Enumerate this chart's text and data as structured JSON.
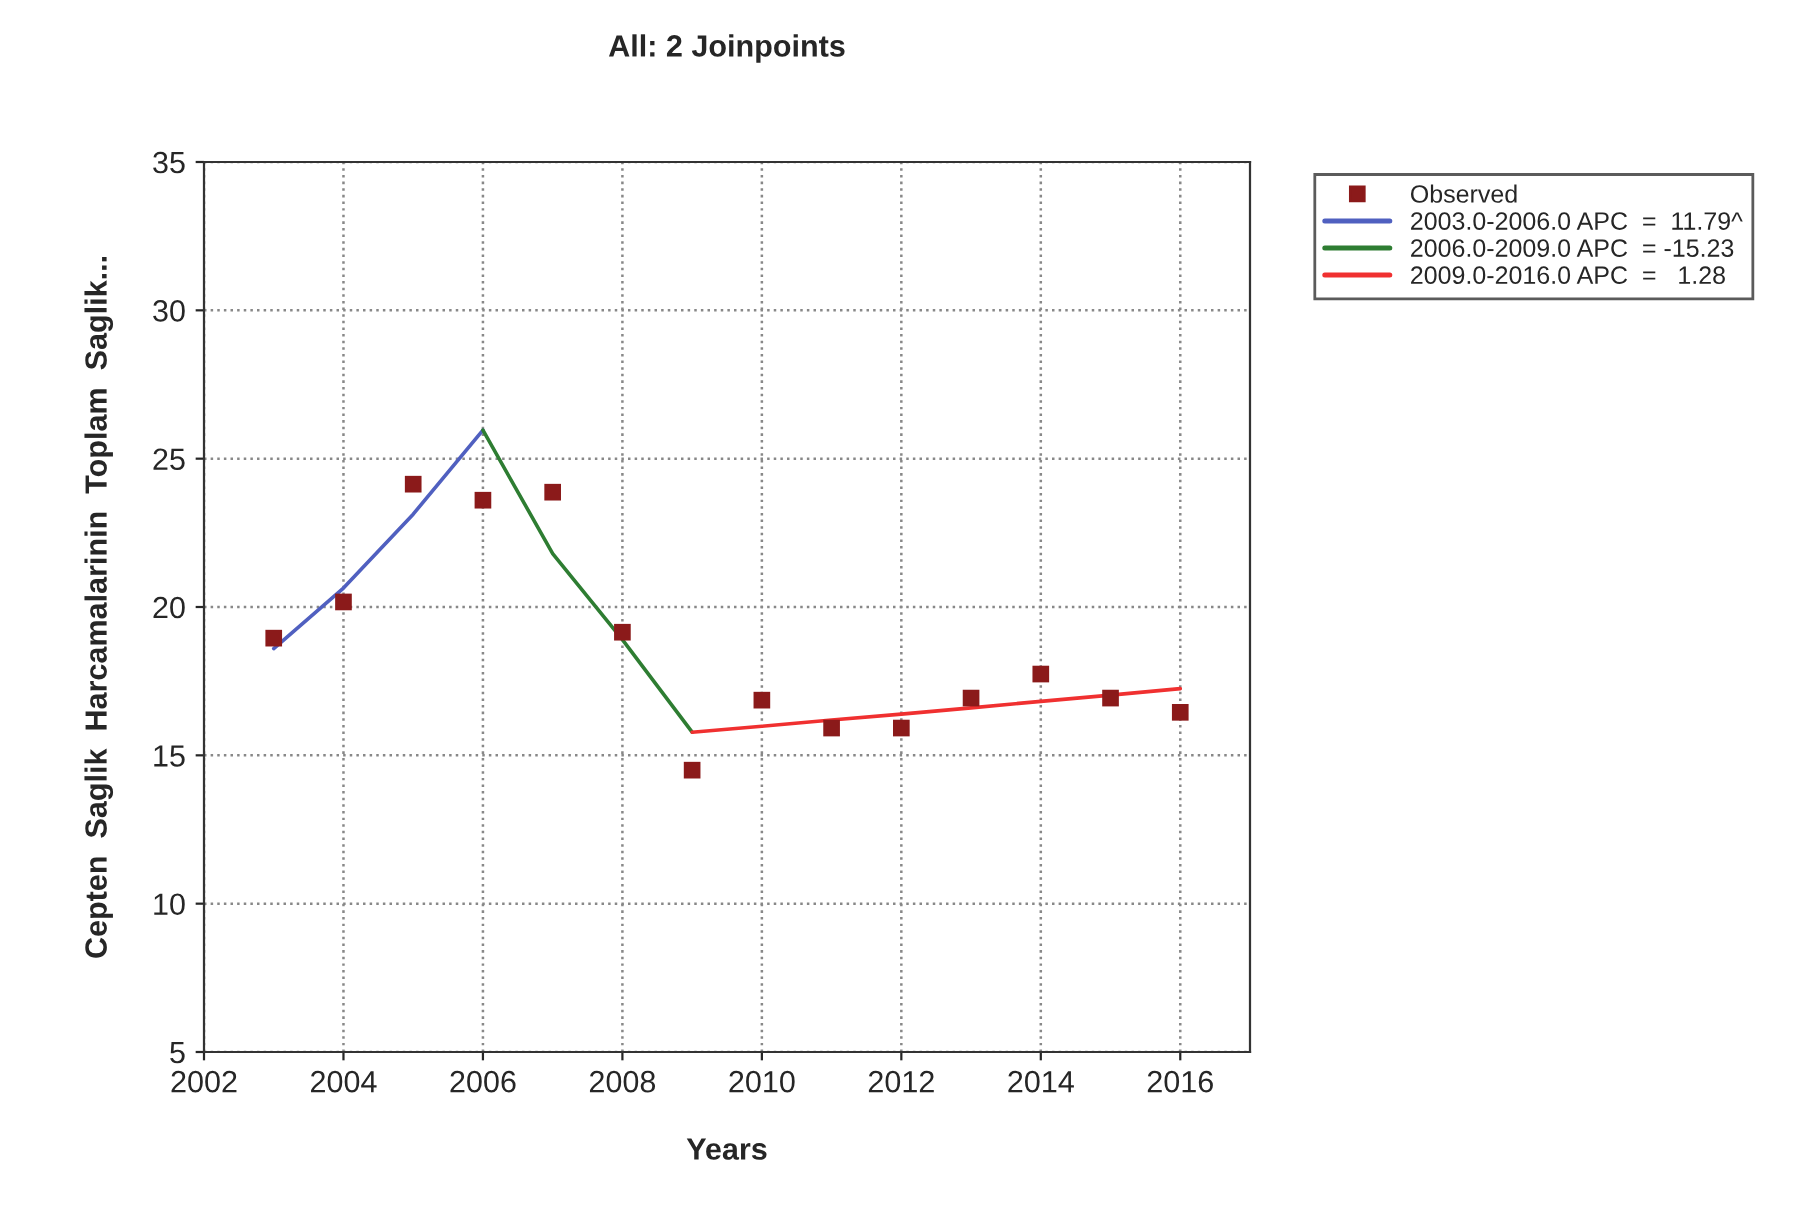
{
  "chart_data": {
    "type": "scatter",
    "title": "All: 2 Joinpoints",
    "xlabel": "Years",
    "ylabel": "Cepten  Saglik  Harcamalarinin  Toplam  Saglik...",
    "series": [
      {
        "name": "Observed",
        "color": "#8b1a1a",
        "marker": "square",
        "x": [
          2003,
          2004,
          2005,
          2006,
          2007,
          2008,
          2009,
          2010,
          2011,
          2012,
          2013,
          2014,
          2015,
          2016
        ],
        "values": [
          18.95,
          20.17,
          24.14,
          23.6,
          23.87,
          19.15,
          14.5,
          16.86,
          15.92,
          15.92,
          16.93,
          17.74,
          16.93,
          16.45
        ]
      },
      {
        "name": "2003.0-2006.0 APC  =  11.79^",
        "type": "line",
        "color": "#5060c0",
        "x": [
          2003,
          2004,
          2005,
          2006
        ],
        "values": [
          18.6,
          20.64,
          23.13,
          25.96
        ]
      },
      {
        "name": "2006.0-2009.0 APC  = -15.23",
        "type": "line",
        "color": "#2e7d32",
        "x": [
          2006,
          2007,
          2008,
          2009
        ],
        "values": [
          25.96,
          21.8,
          18.9,
          15.78
        ]
      },
      {
        "name": "2009.0-2016.0 APC  =   1.28",
        "type": "line",
        "color": "#f03030",
        "x": [
          2009,
          2010,
          2011,
          2012,
          2013,
          2014,
          2015,
          2016
        ],
        "values": [
          15.78,
          15.98,
          16.19,
          16.39,
          16.6,
          16.82,
          17.03,
          17.25
        ]
      }
    ],
    "xlim": [
      2002,
      2017
    ],
    "xticks": [
      2002,
      2004,
      2006,
      2008,
      2010,
      2012,
      2014,
      2016
    ],
    "ylim": [
      5,
      35
    ],
    "yticks": [
      5,
      10,
      15,
      20,
      25,
      30,
      35
    ],
    "grid": true,
    "legend": "top right",
    "line_style": "solid"
  }
}
